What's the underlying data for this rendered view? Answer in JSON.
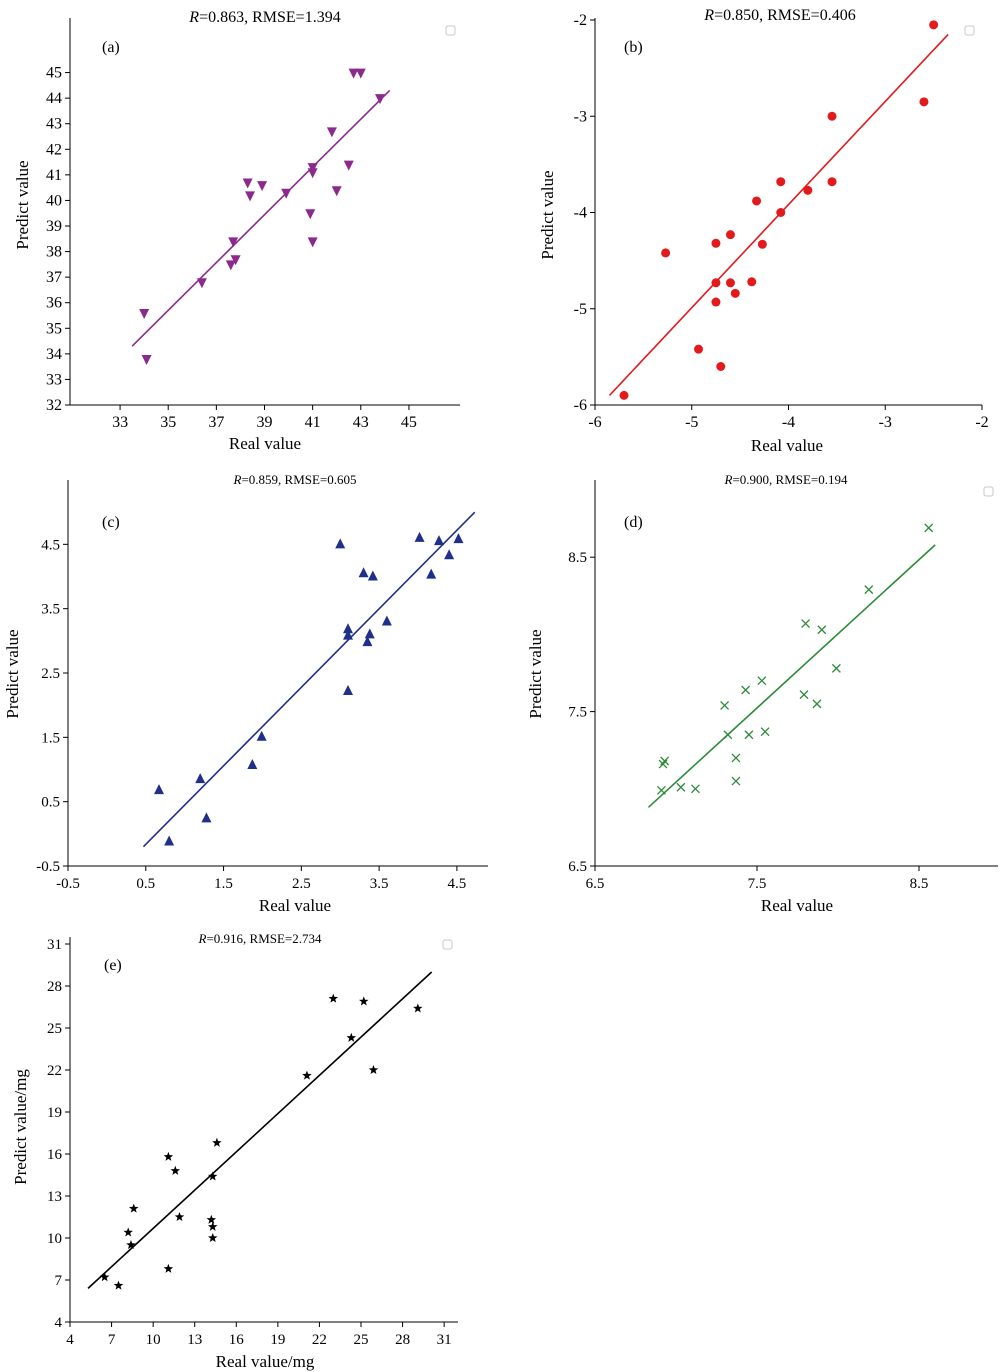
{
  "chart_data": [
    {
      "id": "a",
      "type": "scatter",
      "panel_label": "(a)",
      "title_r": "R",
      "title_rest": "=0.863, RMSE=1.394",
      "xlabel": "Real value",
      "ylabel": "Predict value",
      "xlim": [
        32,
        46
      ],
      "ylim": [
        32,
        46
      ],
      "xticks": [
        33,
        35,
        37,
        39,
        41,
        43,
        45
      ],
      "yticks": [
        32,
        33,
        34,
        35,
        36,
        37,
        38,
        39,
        40,
        41,
        42,
        43,
        44,
        45
      ],
      "marker": "triangle-down",
      "color": "#8b2a8c",
      "fit_line": {
        "x": [
          33.5,
          44.2
        ],
        "y": [
          34.3,
          44.3
        ]
      },
      "points": {
        "x": [
          34.0,
          34.1,
          36.4,
          37.6,
          37.7,
          37.8,
          38.3,
          38.4,
          38.9,
          39.9,
          40.9,
          41.0,
          41.0,
          41.0,
          41.8,
          42.0,
          42.5,
          42.7,
          43.0,
          43.8
        ],
        "y": [
          35.6,
          33.8,
          36.8,
          37.5,
          38.4,
          37.7,
          40.7,
          40.2,
          40.6,
          40.3,
          39.5,
          41.3,
          41.1,
          38.4,
          42.7,
          40.4,
          41.4,
          45.0,
          45.0,
          44.0
        ]
      }
    },
    {
      "id": "b",
      "type": "scatter",
      "panel_label": "(b)",
      "title_r": "R",
      "title_rest": "=0.850,  RMSE=0.406",
      "xlabel": "Real value",
      "ylabel": "Predict value",
      "xlim": [
        -6,
        -2
      ],
      "ylim": [
        -6,
        -2
      ],
      "xticks": [
        -6,
        -5,
        -4,
        -3,
        -2
      ],
      "yticks": [
        -6,
        -5,
        -4,
        -3,
        -2
      ],
      "marker": "circle",
      "color": "#e31a1c",
      "fit_line": {
        "x": [
          -5.85,
          -2.35
        ],
        "y": [
          -5.9,
          -2.15
        ]
      },
      "points": {
        "x": [
          -5.7,
          -5.27,
          -4.93,
          -4.75,
          -4.75,
          -4.75,
          -4.7,
          -4.6,
          -4.6,
          -4.55,
          -4.38,
          -4.33,
          -4.27,
          -4.08,
          -4.08,
          -3.8,
          -3.55,
          -3.55,
          -2.6,
          -2.5
        ],
        "y": [
          -5.9,
          -4.42,
          -5.42,
          -4.32,
          -4.73,
          -4.93,
          -5.6,
          -4.23,
          -4.73,
          -4.84,
          -4.72,
          -3.88,
          -4.33,
          -4.0,
          -3.68,
          -3.77,
          -3.68,
          -3.0,
          -2.85,
          -2.05
        ]
      }
    },
    {
      "id": "c",
      "type": "scatter",
      "panel_label": "(c)",
      "title_r": "R",
      "title_rest": "=0.859, RMSE=0.605",
      "xlabel": "Real value",
      "ylabel": "Predict value",
      "xlim": [
        -0.5,
        4.9
      ],
      "ylim": [
        -0.5,
        5.5
      ],
      "xticks": [
        -0.5,
        0.5,
        1.5,
        2.5,
        3.5,
        4.5
      ],
      "yticks": [
        -0.5,
        0.5,
        1.5,
        2.5,
        3.5,
        4.5
      ],
      "marker": "triangle-up",
      "color": "#1f2f8a",
      "fit_line": {
        "x": [
          0.47,
          4.73
        ],
        "y": [
          -0.2,
          5.0
        ]
      },
      "points": {
        "x": [
          0.67,
          0.8,
          1.2,
          1.28,
          1.87,
          1.99,
          3.0,
          3.1,
          3.1,
          3.1,
          3.3,
          3.35,
          3.38,
          3.42,
          3.6,
          4.02,
          4.17,
          4.27,
          4.4,
          4.52
        ],
        "y": [
          0.68,
          -0.12,
          0.85,
          0.24,
          1.07,
          1.51,
          4.5,
          3.18,
          3.08,
          2.22,
          4.05,
          2.98,
          3.1,
          4.0,
          3.3,
          4.6,
          4.03,
          4.55,
          4.33,
          4.58
        ]
      }
    },
    {
      "id": "d",
      "type": "scatter",
      "panel_label": "(d)",
      "title_r": "R",
      "title_rest": "=0.900, RMSE=0.194",
      "xlabel": "Real value",
      "ylabel": "Predict value",
      "xlim": [
        6.5,
        9.0
      ],
      "ylim": [
        6.5,
        9.0
      ],
      "xticks": [
        6.5,
        7.5,
        8.5
      ],
      "yticks": [
        6.5,
        7.5,
        8.5
      ],
      "marker": "x",
      "color": "#2e8b3a",
      "fit_line": {
        "x": [
          6.83,
          8.6
        ],
        "y": [
          6.88,
          8.58
        ]
      },
      "points": {
        "x": [
          6.91,
          6.92,
          6.93,
          7.03,
          7.12,
          7.3,
          7.32,
          7.37,
          7.37,
          7.43,
          7.45,
          7.53,
          7.55,
          7.79,
          7.8,
          7.87,
          7.9,
          7.99,
          8.19,
          8.56
        ],
        "y": [
          6.99,
          7.16,
          7.18,
          7.01,
          7.0,
          7.54,
          7.35,
          7.2,
          7.05,
          7.64,
          7.35,
          7.7,
          7.37,
          7.61,
          8.07,
          7.55,
          8.03,
          7.78,
          8.29,
          8.69
        ]
      }
    },
    {
      "id": "e",
      "type": "scatter",
      "panel_label": "(e)",
      "title_r": "R",
      "title_rest": "=0.916, RMSE=2.734",
      "xlabel": "Real value/mg",
      "ylabel": "Predict value/mg",
      "xlim": [
        4,
        32
      ],
      "ylim": [
        4,
        31.5
      ],
      "xticks": [
        4,
        7,
        10,
        13,
        16,
        19,
        22,
        25,
        28,
        31
      ],
      "yticks": [
        4,
        7,
        10,
        13,
        16,
        19,
        22,
        25,
        28,
        31
      ],
      "marker": "star",
      "color": "#000000",
      "fit_line": {
        "x": [
          5.3,
          30.1
        ],
        "y": [
          6.4,
          29.0
        ]
      },
      "points": {
        "x": [
          6.5,
          7.5,
          8.2,
          8.4,
          8.6,
          11.1,
          11.1,
          11.6,
          11.9,
          14.2,
          14.3,
          14.3,
          14.3,
          14.6,
          21.1,
          23.0,
          24.3,
          25.2,
          25.9,
          29.1
        ],
        "y": [
          7.2,
          6.6,
          10.4,
          9.5,
          12.1,
          15.8,
          7.8,
          14.8,
          11.5,
          11.3,
          10.8,
          10.0,
          14.4,
          16.8,
          21.6,
          27.1,
          24.3,
          26.9,
          22.0,
          26.4
        ]
      }
    }
  ]
}
